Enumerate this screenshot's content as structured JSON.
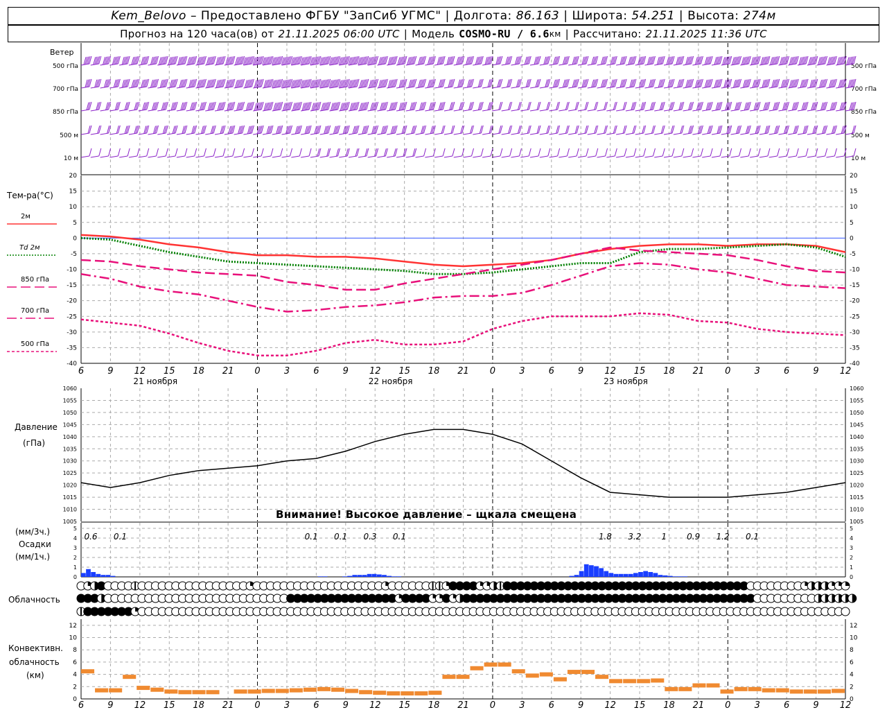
{
  "header": {
    "station": "Kem_Belovo",
    "provided": "– Предоставлено ФГБУ \"ЗапСиб УГМС\"",
    "lon_label": "Долгота:",
    "lon": "86.163",
    "lat_label": "Широта:",
    "lat": "54.251",
    "alt_label": "Высота:",
    "alt": "274м",
    "forecast_label": "Прогноз на 120 часа(ов) от",
    "forecast_time": "21.11.2025 06:00 UTC",
    "model_label": "Модель",
    "model": "COSMO-RU / 6.6",
    "model_unit": "км",
    "calc_label": "Рассчитано:",
    "calc_time": "21.11.2025 11:36 UTC"
  },
  "labels": {
    "wind": "Ветер",
    "wind_levels": [
      "500 гПа",
      "700 гПа",
      "850 гПа",
      "500 м",
      "10 м"
    ],
    "temp_title": "Тем-ра(°С)",
    "pressure_title": "Давление",
    "pressure_unit": "(гПа)",
    "precip_unit_top": "(мм/3ч.)",
    "precip_title": "Осадки",
    "precip_unit_bottom": "(мм/1ч.)",
    "cloud_title": "Облачность",
    "conv_title": "Конвективн.",
    "conv_title2": "облачность",
    "conv_unit": "(км)",
    "warning": "Внимание! Высокое давление – щкала смещена"
  },
  "colors": {
    "t2m": "#ff3333",
    "td2m": "#008000",
    "t850": "#e8107a",
    "t700": "#e8107a",
    "t500": "#e8107a",
    "pressure": "#000000",
    "precip": "#1a3fff",
    "conv": "#f08a30",
    "wind": "#8a20c8",
    "zero": "#3355ff"
  },
  "chart_data": [
    {
      "type": "line",
      "title": "Тем-ра(°С)",
      "x_ticks": [
        "6",
        "9",
        "12",
        "15",
        "18",
        "21",
        "0",
        "3",
        "6",
        "9",
        "12",
        "15",
        "18",
        "21",
        "0",
        "3",
        "6",
        "9",
        "12",
        "15",
        "18",
        "21",
        "0",
        "3",
        "6",
        "9",
        "12"
      ],
      "day_labels": [
        "21 ноября",
        "22 ноября",
        "23 ноября"
      ],
      "ylim": [
        -40,
        20
      ],
      "yticks": [
        20,
        15,
        10,
        5,
        0,
        -5,
        -10,
        -15,
        -20,
        -25,
        -30,
        -35,
        -40
      ],
      "grid": true,
      "series": [
        {
          "name": "2м",
          "style": "solid",
          "values": [
            1,
            0.5,
            -0.5,
            -2,
            -3,
            -4.5,
            -5.5,
            -5.5,
            -6,
            -6,
            -6.5,
            -7.5,
            -8.5,
            -9,
            -8.5,
            -8,
            -7,
            -5,
            -3.5,
            -2.5,
            -2,
            -2,
            -2.5,
            -2,
            -2,
            -2.5,
            -4.5
          ]
        },
        {
          "name": "Td 2м",
          "style": "dotted",
          "values": [
            0,
            -0.5,
            -2.5,
            -4.5,
            -6,
            -7.5,
            -8,
            -8.5,
            -9,
            -9.5,
            -10,
            -10.5,
            -11.5,
            -11.5,
            -11,
            -10,
            -9,
            -8,
            -8,
            -4.5,
            -3.5,
            -3.5,
            -3,
            -2.5,
            -2,
            -3,
            -6
          ]
        },
        {
          "name": "850 гПа",
          "style": "dashed",
          "values": [
            -7,
            -7.5,
            -9,
            -10,
            -11,
            -11.5,
            -12,
            -14,
            -15,
            -16.5,
            -16.5,
            -14.5,
            -13,
            -11.5,
            -10,
            -8.5,
            -7,
            -5,
            -3,
            -4,
            -4.5,
            -5,
            -5.5,
            -7,
            -9,
            -10.5,
            -11
          ]
        },
        {
          "name": "700 гПа",
          "style": "dashdot",
          "values": [
            -11.5,
            -13,
            -15.5,
            -17,
            -18,
            -20,
            -22,
            -23.5,
            -23,
            -22,
            -21.5,
            -20.5,
            -19,
            -18.5,
            -18.5,
            -17.5,
            -15,
            -12,
            -9,
            -8,
            -8.5,
            -10,
            -11,
            -13,
            -15,
            -15.5,
            -16
          ]
        },
        {
          "name": "500 гПа",
          "style": "fine-dashed",
          "values": [
            -26,
            -27,
            -28,
            -30.5,
            -33.5,
            -36,
            -37.5,
            -37.5,
            -36,
            -33.5,
            -32.5,
            -34,
            -34,
            -33,
            -29,
            -26.5,
            -25,
            -25,
            -25,
            -24,
            -24.5,
            -26.5,
            -27,
            -29,
            -30,
            -30.5,
            -31
          ]
        }
      ]
    },
    {
      "type": "line",
      "title": "Давление",
      "ylabel": "(гПа)",
      "ylim": [
        1005,
        1060
      ],
      "yticks": [
        1060,
        1055,
        1050,
        1045,
        1040,
        1035,
        1030,
        1025,
        1020,
        1015,
        1010,
        1005
      ],
      "series": [
        {
          "name": "Давление",
          "values": [
            1021,
            1019,
            1021,
            1024,
            1026,
            1027,
            1028,
            1030,
            1031,
            1034,
            1038,
            1041,
            1043,
            1043,
            1041,
            1037,
            1030,
            1023,
            1017,
            1016,
            1015,
            1015,
            1015,
            1016,
            1017,
            1019,
            1021
          ]
        }
      ]
    },
    {
      "type": "bar",
      "title": "Осадки",
      "ylabel": "(мм/1ч.)",
      "ylim": [
        0,
        5
      ],
      "yticks": [
        5,
        4,
        3,
        2,
        1,
        0
      ],
      "values_hourly": [
        0.4,
        0.8,
        0.5,
        0.3,
        0.2,
        0.2,
        0.1,
        0,
        0,
        0,
        0,
        0,
        0,
        0,
        0,
        0,
        0,
        0,
        0,
        0,
        0,
        0,
        0,
        0,
        0,
        0,
        0,
        0,
        0,
        0,
        0,
        0,
        0,
        0,
        0,
        0,
        0,
        0,
        0,
        0,
        0,
        0,
        0,
        0,
        0,
        0,
        0,
        0,
        0.05,
        0.05,
        0,
        0,
        0,
        0.05,
        0.1,
        0.2,
        0.2,
        0.2,
        0.3,
        0.3,
        0.25,
        0.2,
        0.1,
        0.05,
        0.05,
        0,
        0,
        0,
        0,
        0,
        0,
        0,
        0,
        0,
        0,
        0,
        0,
        0,
        0,
        0,
        0,
        0,
        0,
        0,
        0,
        0,
        0,
        0,
        0,
        0,
        0,
        0,
        0,
        0,
        0,
        0,
        0,
        0,
        0,
        0.1,
        0.2,
        0.6,
        1.3,
        1.2,
        1.1,
        0.9,
        0.6,
        0.4,
        0.3,
        0.3,
        0.3,
        0.3,
        0.4,
        0.5,
        0.6,
        0.5,
        0.4,
        0.2,
        0.15,
        0.1,
        0.05,
        0.05,
        0.05,
        0,
        0,
        0,
        0,
        0,
        0,
        0,
        0,
        0,
        0,
        0,
        0,
        0,
        0,
        0,
        0,
        0,
        0,
        0,
        0,
        0,
        0,
        0,
        0,
        0,
        0,
        0,
        0,
        0,
        0,
        0,
        0
      ],
      "annotations": [
        {
          "text": "0.6",
          "x": 0.0
        },
        {
          "text": "0.1",
          "x": 1.0
        },
        {
          "text": "0.1",
          "x": 7.5
        },
        {
          "text": "0.1",
          "x": 8.5
        },
        {
          "text": "0.3",
          "x": 9.5
        },
        {
          "text": "0.1",
          "x": 10.5
        },
        {
          "text": "1.8",
          "x": 17.5
        },
        {
          "text": "3.2",
          "x": 18.5
        },
        {
          "text": "1",
          "x": 19.5
        },
        {
          "text": "0.9",
          "x": 20.5
        },
        {
          "text": "1.2",
          "x": 21.5
        },
        {
          "text": "0.1",
          "x": 22.5
        }
      ]
    },
    {
      "type": "table",
      "title": "Облачность",
      "rows_code": [
        "ABCDAAAAEAAAAAAAAAAAAAAAABAAAAAAAAAAAAAAAAAAABAAAAAAEEBDDDDBBCEDDDDDDDDDDDDDDDDDDDDDDDDDDDDDDDDDDDDAAAAAAAABCCCBBB",
        "DDDCAAAAAAAAAAAAAAAAAAAAAAAAAAADDDDDDDDDDDDDDDDBDDDDBBDBCDDDDDDDDDDDDDDDDDDDDDDDDDDDDDDDDDDDDDDDDDDDAAAAAAAAACCCCCC",
        "EDDDDDDDBAAAAAAAAAAAAAAAAAAAAAAAAAAAAAAAAAAAAAAAAAAAAAAAAAAAAAAAAAAAAAAAAAAAAAAAAAAAAAAAAAAAAAAAAAAAAAAAAAAAAAAAAA"
      ],
      "legend_codes": {
        "A": 0,
        "B": 0.25,
        "C": 0.5,
        "D": 1.0,
        "E": 0.5
      }
    },
    {
      "type": "bar",
      "title": "Конвективн. облачность",
      "ylabel": "(км)",
      "ylim": [
        0,
        13
      ],
      "yticks": [
        12,
        10,
        8,
        6,
        4,
        2,
        0
      ],
      "values_3h": [
        4.5,
        1.4,
        1.4,
        3.6,
        1.8,
        1.5,
        1.2,
        1.1,
        1.1,
        1.1,
        0,
        1.2,
        1.2,
        1.3,
        1.3,
        1.4,
        1.5,
        1.6,
        1.5,
        1.3,
        1.1,
        1.0,
        0.9,
        0.9,
        0.9,
        1.0,
        3.6,
        3.6,
        5.0,
        5.6,
        5.6,
        4.5,
        3.8,
        4.0,
        3.2,
        4.4,
        4.4,
        3.6,
        2.9,
        2.9,
        2.9,
        3.0,
        1.6,
        1.6,
        2.2,
        2.2,
        1.2,
        1.6,
        1.6,
        1.4,
        1.4,
        1.2,
        1.2,
        1.2,
        1.3
      ]
    },
    {
      "type": "scatter",
      "title": "Ветер",
      "levels": [
        "500 гПа",
        "700 гПа",
        "850 гПа",
        "500 м",
        "10 м"
      ],
      "speeds_ms": [
        [
          25,
          25,
          27,
          28,
          30,
          32,
          34,
          34,
          36,
          36,
          32,
          28,
          26,
          24,
          22,
          22,
          22,
          22,
          22,
          24,
          25,
          26,
          28,
          28,
          30,
          30,
          28
        ],
        [
          22,
          22,
          24,
          26,
          28,
          30,
          32,
          34,
          34,
          34,
          30,
          26,
          22,
          18,
          16,
          16,
          18,
          18,
          18,
          20,
          22,
          24,
          26,
          26,
          28,
          26,
          24
        ],
        [
          16,
          16,
          18,
          20,
          22,
          26,
          28,
          30,
          30,
          30,
          26,
          22,
          18,
          14,
          12,
          10,
          12,
          12,
          12,
          14,
          16,
          18,
          20,
          20,
          22,
          20,
          18
        ],
        [
          12,
          12,
          14,
          14,
          16,
          18,
          22,
          22,
          22,
          22,
          20,
          16,
          12,
          10,
          8,
          8,
          8,
          8,
          10,
          10,
          12,
          14,
          14,
          14,
          16,
          14,
          12
        ],
        [
          5,
          5,
          5,
          6,
          6,
          6,
          7,
          7,
          8,
          8,
          8,
          8,
          6,
          5,
          4,
          3,
          4,
          4,
          4,
          4,
          4,
          5,
          5,
          6,
          6,
          6,
          5
        ]
      ]
    }
  ]
}
